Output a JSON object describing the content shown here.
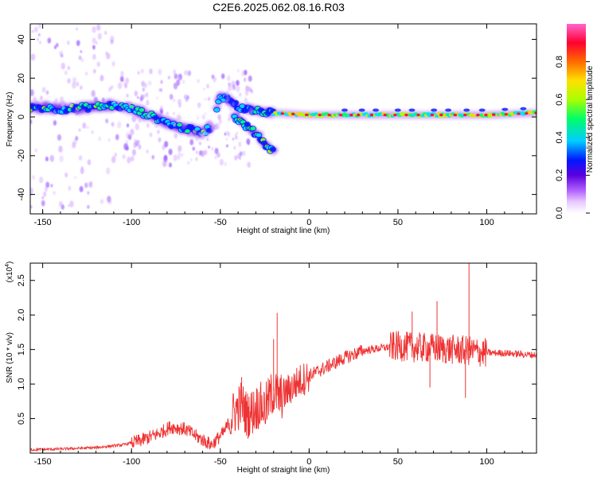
{
  "page": {
    "title": "C2E6.2025.062.08.16.R03"
  },
  "chart_data": [
    {
      "type": "heatmap",
      "xlabel": "Height of straight line (km)",
      "ylabel": "Frequency (Hz)",
      "xlim": [
        -157,
        128
      ],
      "ylim": [
        -50,
        48
      ],
      "xticks": [
        -150,
        -100,
        -50,
        0,
        50,
        100
      ],
      "yticks": [
        -40,
        -20,
        0,
        20,
        40
      ],
      "colorbar": {
        "label": "Normalized spectral amplitude",
        "range": [
          0,
          1
        ],
        "ticks": [
          "0.0",
          "0.2",
          "0.4",
          "0.6",
          "0.8"
        ],
        "colors": [
          "#ffffff",
          "#cc66ff",
          "#5500cc",
          "#0022ff",
          "#00ddff",
          "#00ff66",
          "#aaff00",
          "#ffdd00",
          "#ff6600",
          "#ff0033",
          "#ff66cc"
        ]
      },
      "ridge": [
        {
          "x": -155,
          "y": 5
        },
        {
          "x": -140,
          "y": 4
        },
        {
          "x": -125,
          "y": 5
        },
        {
          "x": -110,
          "y": 6
        },
        {
          "x": -100,
          "y": 4
        },
        {
          "x": -90,
          "y": 1
        },
        {
          "x": -80,
          "y": -3
        },
        {
          "x": -70,
          "y": -6
        },
        {
          "x": -60,
          "y": -8
        },
        {
          "x": -55,
          "y": -5
        },
        {
          "x": -50,
          "y": 11
        },
        {
          "x": -45,
          "y": 9
        },
        {
          "x": -40,
          "y": 5
        },
        {
          "x": -30,
          "y": 3
        },
        {
          "x": -20,
          "y": 2
        },
        {
          "x": 0,
          "y": 1
        },
        {
          "x": 50,
          "y": 1
        },
        {
          "x": 100,
          "y": 1
        },
        {
          "x": 128,
          "y": 2
        }
      ],
      "branch": [
        {
          "x": -42,
          "y": 0
        },
        {
          "x": -35,
          "y": -5
        },
        {
          "x": -28,
          "y": -10
        },
        {
          "x": -25,
          "y": -14
        },
        {
          "x": -20,
          "y": -18
        }
      ]
    },
    {
      "type": "line",
      "xlabel": "Height of straight line (km)",
      "ylabel": "SNR (10 * v/v)",
      "scale_label": "(x10",
      "scale_exp": "4",
      "xlim": [
        -157,
        128
      ],
      "ylim": [
        0,
        2.75
      ],
      "xticks": [
        -150,
        -100,
        -50,
        0,
        50,
        100
      ],
      "yticks": [
        "0.5",
        "1.0",
        "1.5",
        "2.0",
        "2.5"
      ],
      "color": "#ee3333",
      "series": [
        {
          "x": [
            -157,
            -140,
            -120,
            -105,
            -95,
            -85,
            -78,
            -70,
            -62,
            -55,
            -48,
            -42,
            -38,
            -35,
            -32,
            -28,
            -25,
            -20,
            -17,
            -14,
            -10,
            -5,
            0,
            10,
            20,
            30,
            40,
            50,
            60,
            70,
            80,
            90,
            100,
            110,
            120,
            128
          ],
          "y": [
            0.05,
            0.06,
            0.08,
            0.12,
            0.18,
            0.28,
            0.38,
            0.35,
            0.22,
            0.12,
            0.3,
            0.6,
            0.72,
            0.55,
            0.6,
            0.7,
            0.65,
            0.9,
            0.8,
            0.85,
            0.95,
            1.05,
            1.12,
            1.25,
            1.38,
            1.48,
            1.52,
            1.55,
            1.53,
            1.52,
            1.5,
            1.48,
            1.45,
            1.45,
            1.43,
            1.42
          ]
        }
      ],
      "spikes": [
        {
          "x": -18,
          "y": 2.03
        },
        {
          "x": -20,
          "y": 1.65
        },
        {
          "x": -38,
          "y": 1.1
        },
        {
          "x": 72,
          "y": 2.2
        },
        {
          "x": 58,
          "y": 2.05
        },
        {
          "x": 90,
          "y": 2.75
        },
        {
          "x": 88,
          "y": 0.8
        },
        {
          "x": 68,
          "y": 0.95
        }
      ]
    }
  ]
}
